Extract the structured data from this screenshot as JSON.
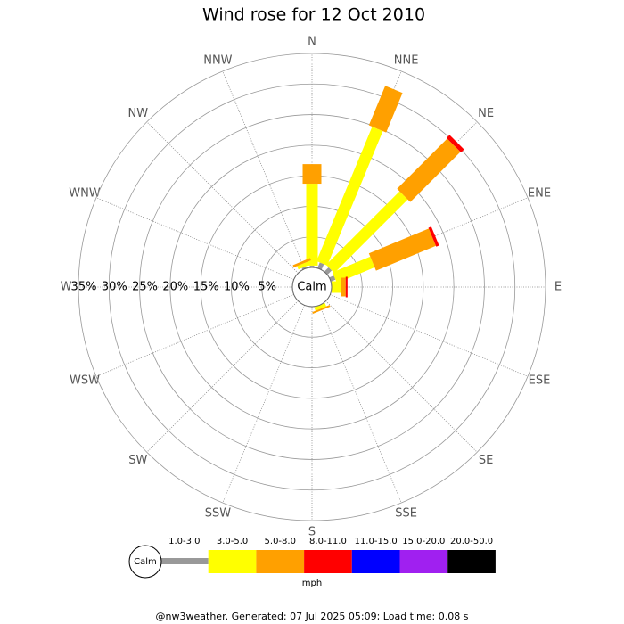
{
  "chart_data": {
    "type": "windrose",
    "title": "Wind rose for 12 Oct 2010",
    "directions": [
      "N",
      "NNE",
      "NE",
      "ENE",
      "E",
      "ESE",
      "SE",
      "SSE",
      "S",
      "SSW",
      "SW",
      "WSW",
      "W",
      "WNW",
      "NW",
      "NNW"
    ],
    "series": [
      {
        "name": "1.0-3.0",
        "color": "#999999",
        "values": [
          0.3,
          1,
          1,
          0.8,
          0,
          0,
          0,
          0,
          0,
          0,
          0,
          0,
          0,
          0,
          0,
          0.3
        ]
      },
      {
        "name": "3.0-5.0",
        "color": "#ffff00",
        "values": [
          13.4,
          23.8,
          17,
          6.7,
          1.5,
          0,
          0,
          0.6,
          0,
          0,
          0,
          0,
          0,
          0,
          0,
          0.6
        ]
      },
      {
        "name": "5.0-8.0",
        "color": "#ffa000",
        "values": [
          3.2,
          7,
          11.6,
          10.6,
          0.8,
          0,
          0,
          0.3,
          0,
          0,
          0,
          0,
          0,
          0,
          0,
          0.4
        ]
      },
      {
        "name": "8.0-11.0",
        "color": "#ff0000",
        "values": [
          0,
          0,
          0.7,
          0.5,
          0.3,
          0,
          0,
          0,
          0,
          0,
          0,
          0,
          0,
          0,
          0,
          0
        ]
      },
      {
        "name": "11.0-15.0",
        "color": "#0000ff",
        "values": [
          0,
          0,
          0,
          0,
          0,
          0,
          0,
          0,
          0,
          0,
          0,
          0,
          0,
          0,
          0,
          0
        ]
      },
      {
        "name": "15.0-20.0",
        "color": "#a020f0",
        "values": [
          0,
          0,
          0,
          0,
          0,
          0,
          0,
          0,
          0,
          0,
          0,
          0,
          0,
          0,
          0,
          0
        ]
      },
      {
        "name": "20.0-50.0",
        "color": "#000000",
        "values": [
          0,
          0,
          0,
          0,
          0,
          0,
          0,
          0,
          0,
          0,
          0,
          0,
          0,
          0,
          0,
          0
        ]
      }
    ],
    "rlim": [
      0,
      35
    ],
    "rticks": [
      {
        "value": 35,
        "label": "35%"
      },
      {
        "value": 30,
        "label": "30%"
      },
      {
        "value": 25,
        "label": "25%"
      },
      {
        "value": 20,
        "label": "20%"
      },
      {
        "value": 15,
        "label": "15%"
      },
      {
        "value": 10,
        "label": "10%"
      },
      {
        "value": 5,
        "label": "5%"
      }
    ],
    "calm_label": "Calm",
    "unit": "mph",
    "footer": "@nw3weather.  Generated: 07 Jul 2025 05:09; Load time: 0.08 s"
  }
}
